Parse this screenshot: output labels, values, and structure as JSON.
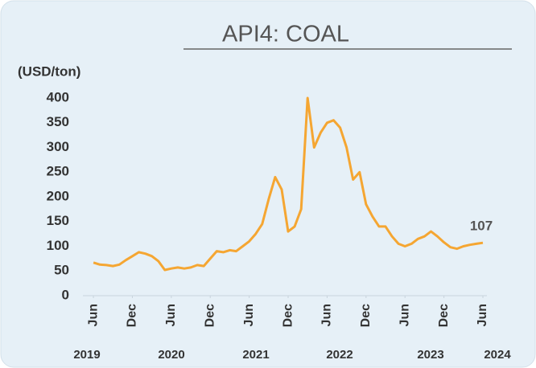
{
  "chart_data": {
    "type": "line",
    "title": "API4: COAL",
    "ylabel": "(USD/ton)",
    "color": "#f5a632",
    "x": [
      "2019-06",
      "2019-07",
      "2019-08",
      "2019-09",
      "2019-10",
      "2019-11",
      "2019-12",
      "2020-01",
      "2020-02",
      "2020-03",
      "2020-04",
      "2020-05",
      "2020-06",
      "2020-07",
      "2020-08",
      "2020-09",
      "2020-10",
      "2020-11",
      "2020-12",
      "2021-01",
      "2021-02",
      "2021-03",
      "2021-04",
      "2021-05",
      "2021-06",
      "2021-07",
      "2021-08",
      "2021-09",
      "2021-10",
      "2021-11",
      "2021-12",
      "2022-01",
      "2022-02",
      "2022-03",
      "2022-04",
      "2022-05",
      "2022-06",
      "2022-07",
      "2022-08",
      "2022-09",
      "2022-10",
      "2022-11",
      "2022-12",
      "2023-01",
      "2023-02",
      "2023-03",
      "2023-04",
      "2023-05",
      "2023-06",
      "2023-07",
      "2023-08",
      "2023-09",
      "2023-10",
      "2023-11",
      "2023-12",
      "2024-01",
      "2024-02",
      "2024-03",
      "2024-04",
      "2024-05",
      "2024-06"
    ],
    "values": [
      67,
      63,
      62,
      60,
      63,
      72,
      80,
      88,
      85,
      80,
      70,
      52,
      55,
      57,
      55,
      57,
      62,
      60,
      75,
      90,
      88,
      92,
      90,
      100,
      110,
      125,
      145,
      195,
      240,
      215,
      130,
      140,
      175,
      400,
      300,
      330,
      350,
      355,
      340,
      300,
      235,
      250,
      185,
      160,
      140,
      140,
      120,
      105,
      100,
      105,
      115,
      120,
      130,
      120,
      108,
      98,
      95,
      100,
      103,
      105,
      107
    ],
    "xlim": [
      "2019-05",
      "2024-06"
    ],
    "xticks": [
      {
        "value": "2019-06",
        "label": "Jun"
      },
      {
        "value": "2019-12",
        "label": "Dec"
      },
      {
        "value": "2020-06",
        "label": "Jun"
      },
      {
        "value": "2020-12",
        "label": "Dec"
      },
      {
        "value": "2021-06",
        "label": "Jun"
      },
      {
        "value": "2021-12",
        "label": "Dec"
      },
      {
        "value": "2022-06",
        "label": "Jun"
      },
      {
        "value": "2022-12",
        "label": "Dec"
      },
      {
        "value": "2023-06",
        "label": "Jun"
      },
      {
        "value": "2023-12",
        "label": "Dec"
      },
      {
        "value": "2024-06",
        "label": "Jun"
      }
    ],
    "year_labels": [
      "2019",
      "2020",
      "2021",
      "2022",
      "2023",
      "2024"
    ],
    "ylim": [
      0,
      400
    ],
    "yticks": [
      0,
      50,
      100,
      150,
      200,
      250,
      300,
      350,
      400
    ],
    "grid": false
  }
}
